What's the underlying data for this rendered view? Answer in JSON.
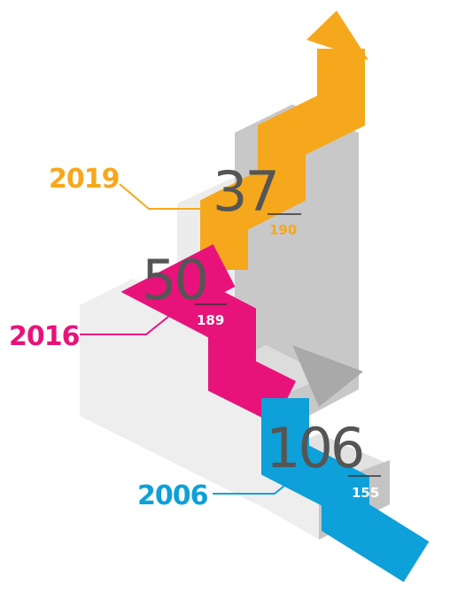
{
  "steps": [
    {
      "year": "2019",
      "rank": "37",
      "total": "190"
    },
    {
      "year": "2016",
      "rank": "50",
      "total": "189"
    },
    {
      "year": "2006",
      "rank": "106",
      "total": "155"
    }
  ]
}
